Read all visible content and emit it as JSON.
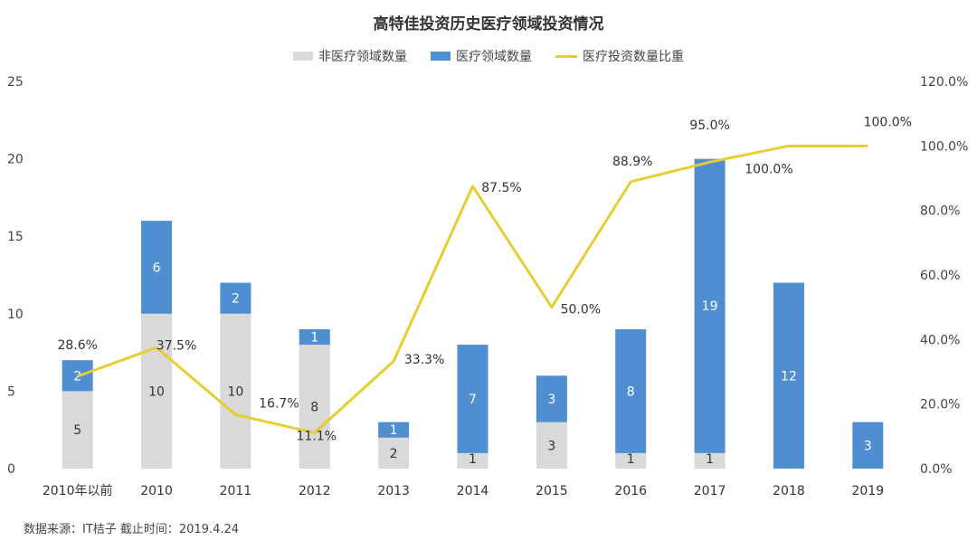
{
  "chart_data": {
    "type": "bar",
    "title": "高特佳投资历史医疗领域投资情况",
    "categories": [
      "2010年以前",
      "2010",
      "2011",
      "2012",
      "2013",
      "2014",
      "2015",
      "2016",
      "2017",
      "2018",
      "2019"
    ],
    "series": [
      {
        "name": "非医疗领域数量",
        "kind": "stacked-bar",
        "color": "#d9d9d9",
        "values": [
          5,
          10,
          10,
          8,
          2,
          1,
          3,
          1,
          1,
          0,
          0
        ],
        "labels": [
          "5",
          "10",
          "10",
          "8",
          "2",
          "1",
          "3",
          "1",
          "1",
          "",
          ""
        ]
      },
      {
        "name": "医疗领域数量",
        "kind": "stacked-bar",
        "color": "#4f8fd1",
        "values": [
          2,
          6,
          2,
          1,
          1,
          7,
          3,
          8,
          19,
          12,
          3
        ],
        "labels": [
          "2",
          "6",
          "2",
          "1",
          "1",
          "7",
          "3",
          "8",
          "19",
          "12",
          "3"
        ]
      },
      {
        "name": "医疗投资数量比重",
        "kind": "line",
        "axis": "right",
        "color": "#e8cd30",
        "values": [
          28.6,
          37.5,
          16.7,
          11.1,
          33.3,
          87.5,
          50.0,
          88.9,
          95.0,
          100.0,
          100.0
        ],
        "labels": [
          "28.6%",
          "37.5%",
          "16.7%",
          "11.1%",
          "33.3%",
          "87.5%",
          "50.0%",
          "88.9%",
          "95.0%",
          "100.0%",
          "100.0%"
        ]
      }
    ],
    "y_left": {
      "min": 0,
      "max": 25,
      "ticks": [
        "0",
        "5",
        "10",
        "15",
        "20",
        "25"
      ]
    },
    "y_right": {
      "min": 0,
      "max": 120,
      "ticks": [
        "0.0%",
        "20.0%",
        "40.0%",
        "60.0%",
        "80.0%",
        "100.0%",
        "120.0%"
      ]
    },
    "grid": false,
    "legend_position": "top"
  },
  "source_note": "数据来源：IT桔子  截止时间：2019.4.24"
}
